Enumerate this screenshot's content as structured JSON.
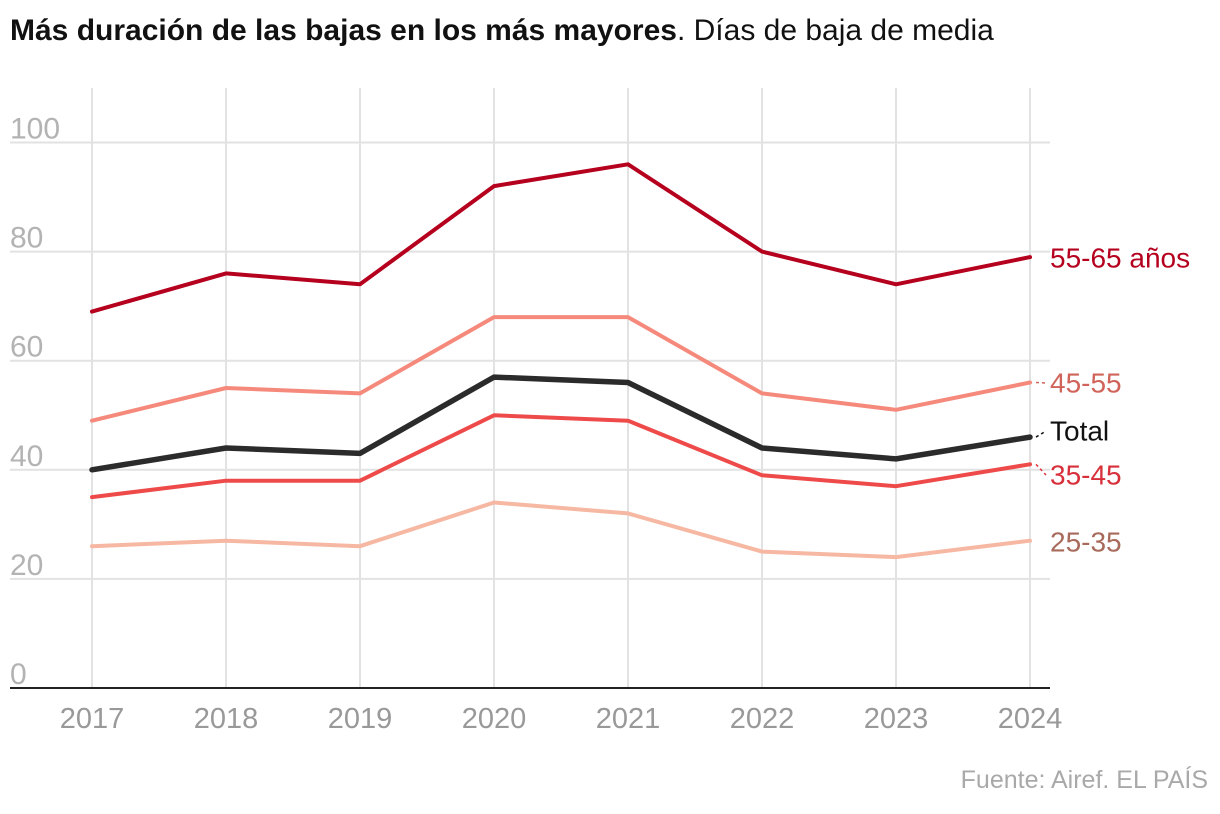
{
  "header": {
    "title_bold": "Más duración de las bajas en los más mayores",
    "title_rest": ". Días de baja de media"
  },
  "footer": {
    "source": "Fuente: Airef. EL PAÍS"
  },
  "chart_data": {
    "type": "line",
    "title": "Más duración de las bajas en los más mayores",
    "subtitle": "Días de baja de media",
    "xlabel": "",
    "ylabel": "",
    "x": [
      2017,
      2018,
      2019,
      2020,
      2021,
      2022,
      2023,
      2024
    ],
    "x_tick_labels": [
      "2017",
      "2018",
      "2019",
      "2020",
      "2021",
      "2022",
      "2023",
      "2024"
    ],
    "y_ticks": [
      0,
      20,
      40,
      60,
      80,
      100
    ],
    "y_tick_labels": [
      "0",
      "20",
      "40",
      "60",
      "80",
      "100"
    ],
    "ylim": [
      0,
      110
    ],
    "grid": true,
    "legend": "direct labels at right end of lines",
    "series": [
      {
        "key": "s2535",
        "name": "25-35",
        "label": "25-35",
        "color": "#f6b8a2",
        "label_color": "#a86a5a",
        "values": [
          26,
          27,
          26,
          34,
          32,
          25,
          24,
          27
        ]
      },
      {
        "key": "s3545",
        "name": "35-45",
        "label": "35-45",
        "color": "#ee4a4a",
        "label_color": "#d8303a",
        "values": [
          35,
          38,
          38,
          50,
          49,
          39,
          37,
          41
        ]
      },
      {
        "key": "s4555",
        "name": "45-55",
        "label": "45-55",
        "color": "#f58a7c",
        "label_color": "#d0645a",
        "values": [
          49,
          55,
          54,
          68,
          68,
          54,
          51,
          56
        ]
      },
      {
        "key": "total",
        "name": "Total",
        "label": "Total",
        "color": "#2b2b2b",
        "label_color": "#111111",
        "values": [
          40,
          44,
          43,
          57,
          56,
          44,
          42,
          46
        ]
      },
      {
        "key": "s5565",
        "name": "55-65 años",
        "label": "55-65 años",
        "color": "#b5001e",
        "label_color": "#b5001e",
        "values": [
          69,
          76,
          74,
          92,
          96,
          80,
          74,
          79
        ]
      }
    ]
  }
}
